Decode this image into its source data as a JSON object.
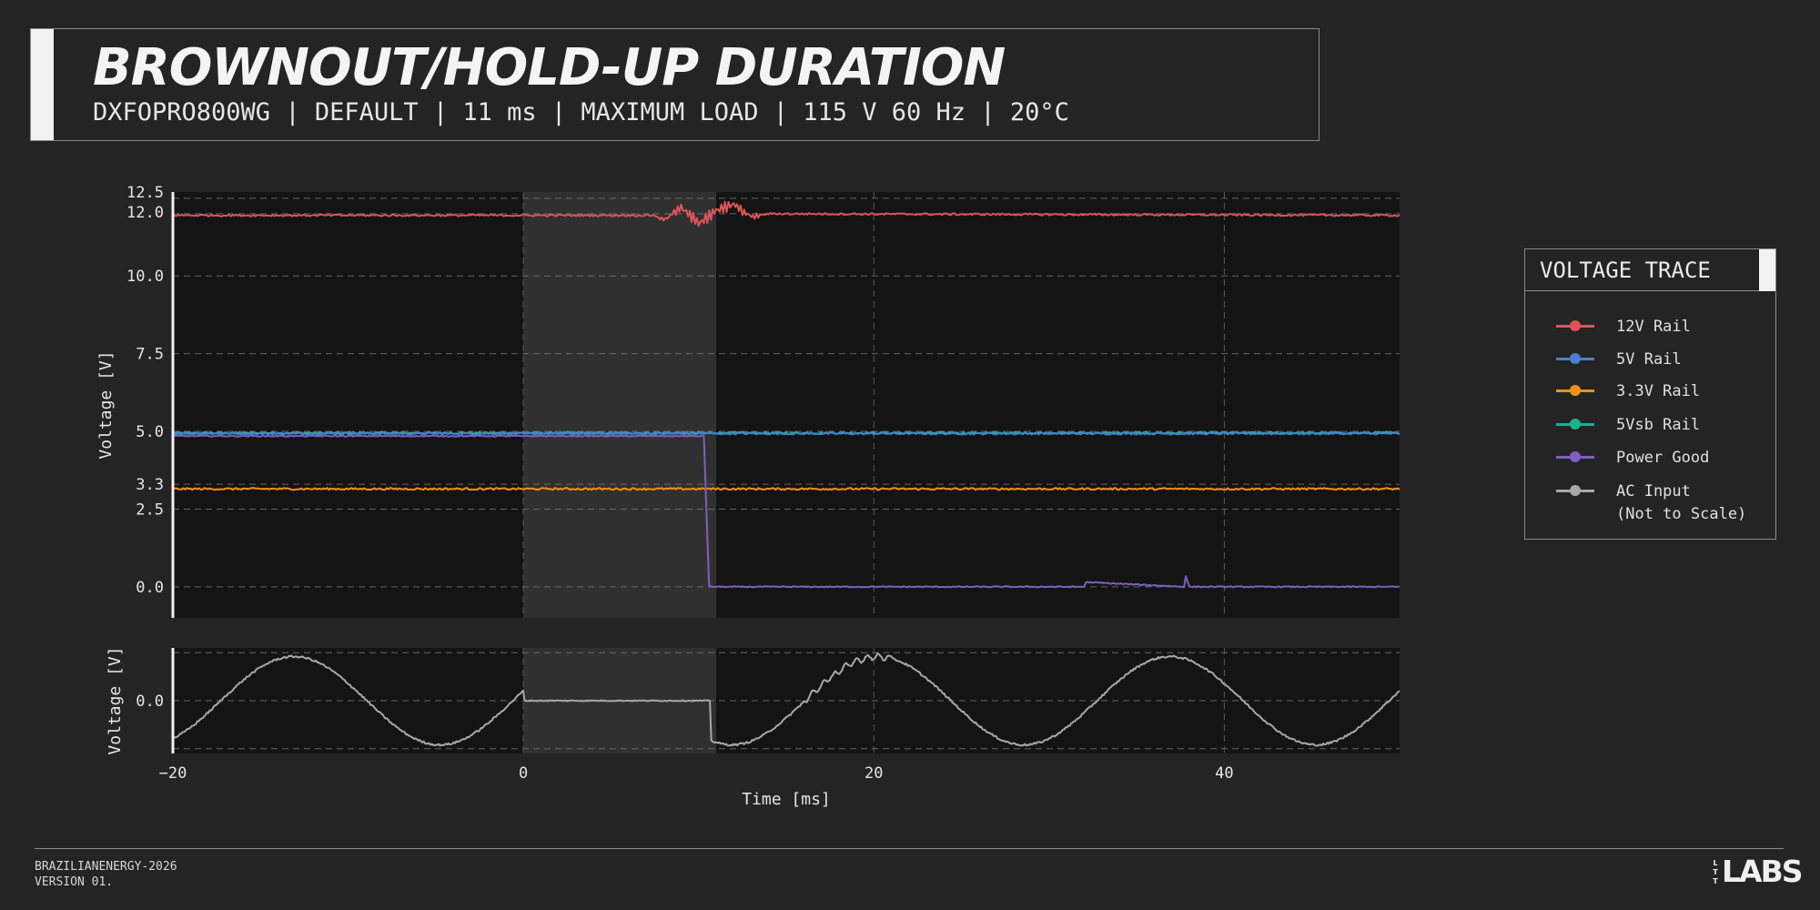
{
  "header": {
    "title": "BROWNOUT/HOLD-UP DURATION",
    "subtitle": "DXFOPRO800WG | DEFAULT | 11 ms | MAXIMUM LOAD | 115 V 60 Hz | 20°C"
  },
  "legend": {
    "title": "VOLTAGE TRACE",
    "items": [
      {
        "label": "12V Rail",
        "color": "#e0525a"
      },
      {
        "label": "5V Rail",
        "color": "#4a7fcf"
      },
      {
        "label": "3.3V Rail",
        "color": "#f2901f"
      },
      {
        "label": "5Vsb Rail",
        "color": "#1fb08d"
      },
      {
        "label": "Power Good",
        "color": "#7f5fc0"
      },
      {
        "label": "AC Input\n(Not to Scale)",
        "color": "#a8a8a8"
      }
    ]
  },
  "chart_data": [
    {
      "type": "line",
      "ylabel": "Voltage [V]",
      "xlim": [
        -20,
        50
      ],
      "ylim": [
        -1.0,
        12.7
      ],
      "yticks": [
        "0.0",
        "2.5",
        "3.3",
        "5.0",
        "7.5",
        "10.0",
        "12.0",
        "12.5"
      ],
      "grid": true,
      "shaded_region": [
        0,
        11
      ],
      "series": [
        {
          "name": "12V Rail",
          "color": "#e0525a",
          "x": [
            -20,
            7.5,
            8,
            9,
            10,
            11,
            12,
            13,
            14,
            50
          ],
          "y": [
            11.95,
            11.95,
            11.8,
            12.2,
            11.7,
            12.1,
            12.3,
            11.9,
            12.0,
            11.95
          ]
        },
        {
          "name": "5V Rail",
          "color": "#4a7fcf",
          "x": [
            -20,
            50
          ],
          "y": [
            4.93,
            4.93
          ]
        },
        {
          "name": "3.3V Rail",
          "color": "#f2901f",
          "x": [
            -20,
            50
          ],
          "y": [
            3.15,
            3.15
          ]
        },
        {
          "name": "5Vsb Rail",
          "color": "#1fb08d",
          "x": [
            -20,
            50
          ],
          "y": [
            4.95,
            4.95
          ]
        },
        {
          "name": "Power Good",
          "color": "#7f5fc0",
          "x": [
            -20,
            10.3,
            10.6,
            32,
            32.1,
            37.7,
            37.8,
            38,
            50
          ],
          "y": [
            4.85,
            4.85,
            0.0,
            0.0,
            0.15,
            0.0,
            0.35,
            0.0,
            0.0
          ]
        }
      ]
    },
    {
      "type": "line",
      "xlabel": "Time [ms]",
      "ylabel": "Voltage [V]",
      "xlim": [
        -20,
        50
      ],
      "ylim": [
        -1.1,
        1.1
      ],
      "xticks": [
        "−20",
        "0",
        "20",
        "40"
      ],
      "yticks": [
        "0.0"
      ],
      "grid": true,
      "shaded_region": [
        0,
        11
      ],
      "series": [
        {
          "name": "AC Input",
          "color": "#a8a8a8",
          "frequency_hz": 60,
          "ac_off_interval_ms": [
            0,
            10.7
          ]
        }
      ]
    }
  ],
  "footer": {
    "line1": "BRAZILIANENERGY-2026",
    "line2": "VERSION 01.",
    "logo_small": "LTT",
    "logo_big": "LABS"
  }
}
